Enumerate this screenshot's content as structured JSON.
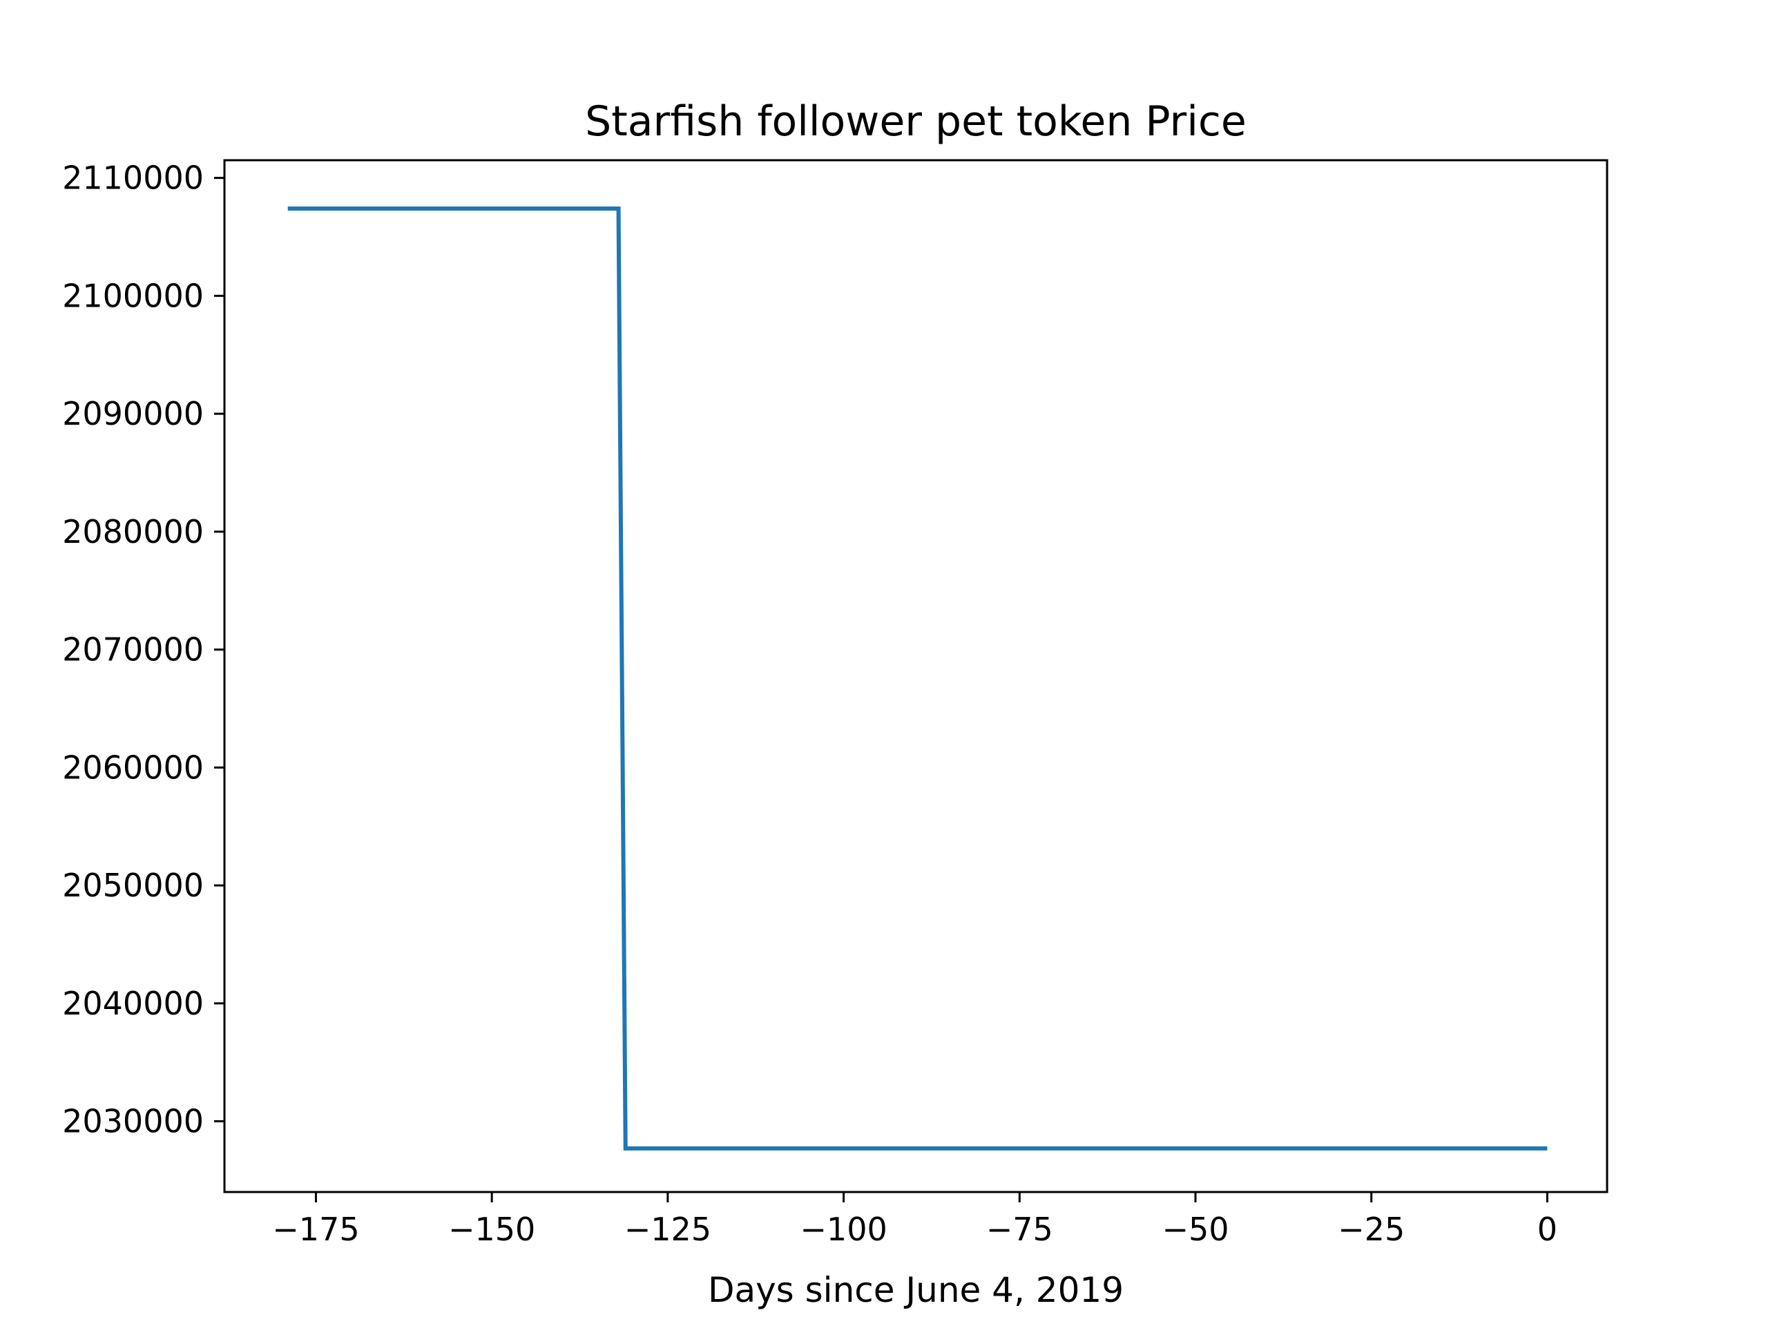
{
  "chart_data": {
    "type": "line",
    "title": "Starfish follower pet token Price",
    "xlabel": "Days since June 4, 2019",
    "ylabel": "",
    "xlim": [
      -188,
      8.5
    ],
    "ylim": [
      2024000,
      2111500
    ],
    "x_ticks": [
      -175,
      -150,
      -125,
      -100,
      -75,
      -50,
      -25,
      0
    ],
    "x_tick_labels": [
      "−175",
      "−150",
      "−125",
      "−100",
      "−75",
      "−50",
      "−25",
      "0"
    ],
    "y_ticks": [
      2030000,
      2040000,
      2050000,
      2060000,
      2070000,
      2080000,
      2090000,
      2100000,
      2110000
    ],
    "y_tick_labels": [
      "2030000",
      "2040000",
      "2050000",
      "2060000",
      "2070000",
      "2080000",
      "2090000",
      "2100000",
      "2110000"
    ],
    "grid": false,
    "series": [
      {
        "color": "#1f77b4",
        "x": [
          -179,
          -132,
          -131,
          0
        ],
        "y": [
          2107400,
          2107400,
          2027700,
          2027700
        ]
      }
    ]
  }
}
